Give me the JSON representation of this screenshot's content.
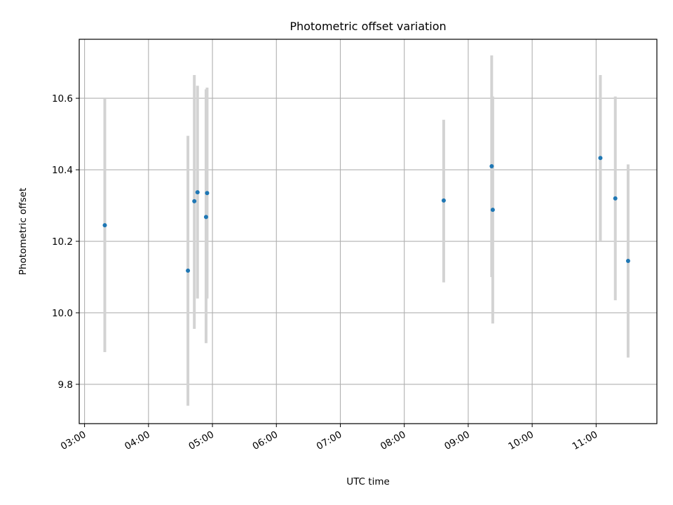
{
  "chart_data": {
    "type": "scatter",
    "title": "Photometric offset variation",
    "xlabel": "UTC time",
    "ylabel": "Photometric offset",
    "x_axis_type": "time",
    "xlim": [
      "02:55",
      "11:57"
    ],
    "ylim": [
      9.69,
      10.765
    ],
    "x_ticks": [
      "03:00",
      "04:00",
      "05:00",
      "06:00",
      "07:00",
      "08:00",
      "09:00",
      "10:00",
      "11:00"
    ],
    "y_ticks": [
      9.8,
      10.0,
      10.2,
      10.4,
      10.6
    ],
    "y_tick_labels": [
      "9.8",
      "10.0",
      "10.2",
      "10.4",
      "10.6"
    ],
    "grid": true,
    "x_tick_rotation_deg": 30,
    "point_color": "#1f77b4",
    "errorbar_color": "#d3d3d3",
    "points": [
      {
        "time": "03:19",
        "value": 10.245,
        "low": 9.89,
        "high": 10.6
      },
      {
        "time": "04:37",
        "value": 10.118,
        "low": 9.74,
        "high": 10.495
      },
      {
        "time": "04:43",
        "value": 10.312,
        "low": 9.955,
        "high": 10.665
      },
      {
        "time": "04:46",
        "value": 10.337,
        "low": 10.04,
        "high": 10.635
      },
      {
        "time": "04:54",
        "value": 10.268,
        "low": 9.915,
        "high": 10.625
      },
      {
        "time": "04:55",
        "value": 10.335,
        "low": 10.04,
        "high": 10.63
      },
      {
        "time": "08:37",
        "value": 10.314,
        "low": 10.085,
        "high": 10.54
      },
      {
        "time": "09:22",
        "value": 10.41,
        "low": 10.1,
        "high": 10.72
      },
      {
        "time": "09:23",
        "value": 10.288,
        "low": 9.97,
        "high": 10.605
      },
      {
        "time": "11:04",
        "value": 10.433,
        "low": 10.2,
        "high": 10.665
      },
      {
        "time": "11:18",
        "value": 10.32,
        "low": 10.035,
        "high": 10.605
      },
      {
        "time": "11:30",
        "value": 10.145,
        "low": 9.875,
        "high": 10.415
      }
    ]
  }
}
